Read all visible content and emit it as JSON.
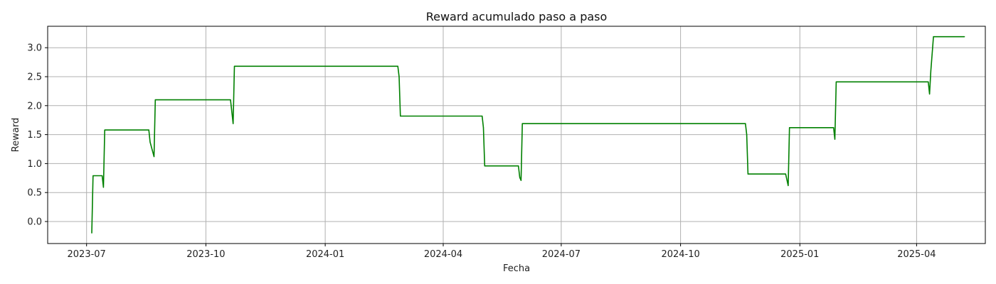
{
  "chart_data": {
    "type": "line",
    "title": "Reward acumulado paso a paso",
    "xlabel": "Fecha",
    "ylabel": "Reward",
    "x_axis_type": "date",
    "xlim": [
      "2023-06-01",
      "2025-05-24"
    ],
    "ylim": [
      -0.38,
      3.37
    ],
    "grid": true,
    "line_color": "#008000",
    "x_ticks": [
      {
        "value": "2023-07-01",
        "label": "2023-07"
      },
      {
        "value": "2023-10-01",
        "label": "2023-10"
      },
      {
        "value": "2024-01-01",
        "label": "2024-01"
      },
      {
        "value": "2024-04-01",
        "label": "2024-04"
      },
      {
        "value": "2024-07-01",
        "label": "2024-07"
      },
      {
        "value": "2024-10-01",
        "label": "2024-10"
      },
      {
        "value": "2025-01-01",
        "label": "2025-01"
      },
      {
        "value": "2025-04-01",
        "label": "2025-04"
      }
    ],
    "y_ticks": [
      {
        "value": 0.0,
        "label": "0.0"
      },
      {
        "value": 0.5,
        "label": "0.5"
      },
      {
        "value": 1.0,
        "label": "1.0"
      },
      {
        "value": 1.5,
        "label": "1.5"
      },
      {
        "value": 2.0,
        "label": "2.0"
      },
      {
        "value": 2.5,
        "label": "2.5"
      },
      {
        "value": 3.0,
        "label": "3.0"
      }
    ],
    "series": [
      {
        "points": [
          [
            "2023-07-05",
            -0.2
          ],
          [
            "2023-07-06",
            0.79
          ],
          [
            "2023-07-13",
            0.79
          ],
          [
            "2023-07-14",
            0.59
          ],
          [
            "2023-07-15",
            1.58
          ],
          [
            "2023-08-18",
            1.58
          ],
          [
            "2023-08-19",
            1.37
          ],
          [
            "2023-08-22",
            1.12
          ],
          [
            "2023-08-23",
            2.1
          ],
          [
            "2023-10-20",
            2.1
          ],
          [
            "2023-10-22",
            1.69
          ],
          [
            "2023-10-23",
            2.68
          ],
          [
            "2024-02-26",
            2.68
          ],
          [
            "2024-02-27",
            2.5
          ],
          [
            "2024-02-28",
            1.82
          ],
          [
            "2024-05-01",
            1.82
          ],
          [
            "2024-05-02",
            1.62
          ],
          [
            "2024-05-03",
            0.96
          ],
          [
            "2024-05-29",
            0.96
          ],
          [
            "2024-05-30",
            0.76
          ],
          [
            "2024-05-31",
            0.71
          ],
          [
            "2024-06-01",
            1.69
          ],
          [
            "2024-11-20",
            1.69
          ],
          [
            "2024-11-21",
            1.5
          ],
          [
            "2024-11-22",
            0.82
          ],
          [
            "2024-12-21",
            0.82
          ],
          [
            "2024-12-23",
            0.62
          ],
          [
            "2024-12-24",
            1.62
          ],
          [
            "2025-01-27",
            1.62
          ],
          [
            "2025-01-28",
            1.42
          ],
          [
            "2025-01-29",
            2.41
          ],
          [
            "2025-04-10",
            2.41
          ],
          [
            "2025-04-11",
            2.2
          ],
          [
            "2025-04-12",
            2.6
          ],
          [
            "2025-04-14",
            3.19
          ],
          [
            "2025-05-08",
            3.19
          ]
        ]
      }
    ]
  }
}
